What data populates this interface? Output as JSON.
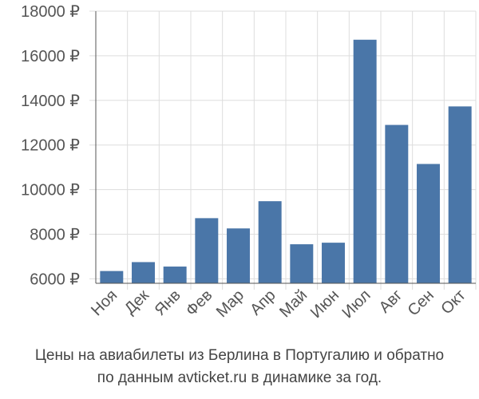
{
  "chart_data": {
    "type": "bar",
    "categories": [
      "Ноя",
      "Дек",
      "Янв",
      "Фев",
      "Мар",
      "Апр",
      "Май",
      "Июн",
      "Июл",
      "Авг",
      "Сен",
      "Окт"
    ],
    "values": [
      6350,
      6750,
      6550,
      8720,
      8260,
      9480,
      7550,
      7620,
      16720,
      12900,
      11150,
      13730
    ],
    "ylim": [
      5800,
      18000
    ],
    "yticks": [
      6000,
      8000,
      10000,
      12000,
      14000,
      16000,
      18000
    ],
    "ytick_labels": [
      "6000 ₽",
      "8000 ₽",
      "10000 ₽",
      "12000 ₽",
      "14000 ₽",
      "16000 ₽",
      "18000 ₽"
    ],
    "grid": true,
    "bar_color": "#4a76a8",
    "grid_color": "#dddddd",
    "axis_color": "#555555",
    "tick_label_color": "#555555"
  },
  "caption": {
    "line1": "Цены на авиабилеты из Берлина в Португалию и обратно",
    "line2": "по данным avticket.ru в динамике за год."
  }
}
